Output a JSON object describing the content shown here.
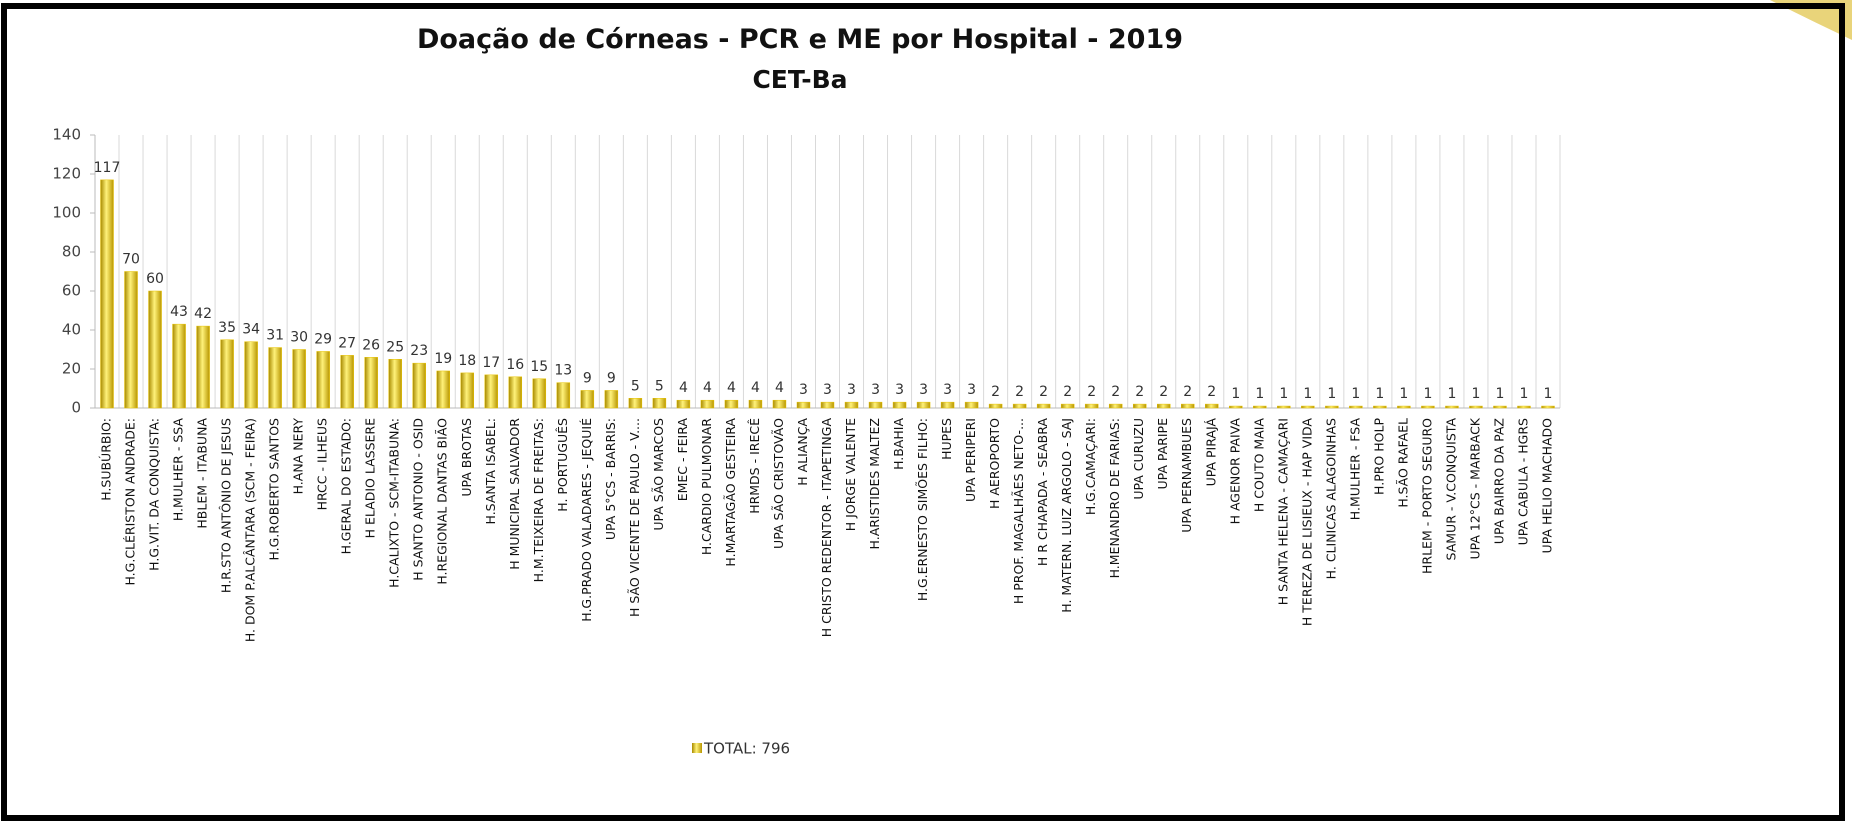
{
  "chart_data": {
    "type": "bar",
    "title": "Doação de Córneas - PCR e ME por Hospital - 2019",
    "subtitle": "CET-Ba",
    "categories": [
      "H.SUBÚRBIO:",
      "H.G.CLÉRISTON ANDRADE:",
      "H.G.VIT. DA CONQUISTA:",
      "H.MULHER - SSA",
      "HBLEM - ITABUNA",
      "H.R.STO ANTÔNIO DE JESUS",
      "H. DOM P.ALCÂNTARA (SCM - FEIRA)",
      "H.G.ROBERTO SANTOS",
      "H.ANA NERY",
      "HRCC - ILHEUS",
      "H.GERAL DO ESTADO:",
      "H ELADIO LASSERE",
      "H.CALIXTO - SCM-ITABUNA:",
      "H SANTO ANTONIO - OSID",
      "H.REGIONAL DANTAS BIÃO",
      "UPA BROTAS",
      "H.SANTA ISABEL:",
      "H MUNICIPAL SALVADOR",
      "H.M.TEIXEIRA DE FREITAS:",
      "H. PORTUGUÊS",
      "H.G.PRADO VALADARES - JEQUIÉ",
      "UPA 5°CS - BARRIS:",
      "H SÃO VICENTE DE PAULO - V....",
      "UPA SÃO MARCOS",
      "EMEC - FEIRA",
      "H.CARDIO PULMONAR",
      "H.MARTAGÃO GESTEIRA",
      "HRMDS - IRECÊ",
      "UPA SÃO CRISTOVÃO",
      "H ALIANÇA",
      "H CRISTO REDENTOR - ITAPETINGA",
      "H JORGE VALENTE",
      "H.ARISTIDES MALTEZ",
      "H.BAHIA",
      "H.G.ERNESTO SIMÕES FILHO:",
      "HUPES",
      "UPA PERIPERI",
      "H AEROPORTO",
      "H PROF. MAGALHÃES NETO-...",
      "H R CHAPADA - SEABRA",
      "H. MATERN. LUIZ ARGOLO - SAJ",
      "H.G.CAMAÇARI:",
      "H.MENANDRO DE FARIAS:",
      "UPA CURUZU",
      "UPA PARIPE",
      "UPA PERNAMBUES",
      "UPA PIRAJÁ",
      "H AGENOR PAIVA",
      "H COUTO MAIA",
      "H SANTA HELENA - CAMAÇARI",
      "H TEREZA DE LISIEUX - HAP VIDA",
      "H. CLINICAS ALAGOINHAS",
      "H.MULHER - FSA",
      "H.PRO HOLP",
      "H.SÃO RAFAEL",
      "HRLEM - PORTO SEGURO",
      "SAMUR - V.CONQUISTA",
      "UPA 12°CS - MARBACK",
      "UPA BAIRRO DA PAZ",
      "UPA CABULA - HGRS",
      "UPA HELIO MACHADO"
    ],
    "series": [
      {
        "name": "TOTAL: 796",
        "color": "#e8c300",
        "values": [
          117,
          70,
          60,
          43,
          42,
          35,
          34,
          31,
          30,
          29,
          27,
          26,
          25,
          23,
          19,
          18,
          17,
          16,
          15,
          13,
          9,
          9,
          5,
          5,
          4,
          4,
          4,
          4,
          4,
          3,
          3,
          3,
          3,
          3,
          3,
          3,
          3,
          2,
          2,
          2,
          2,
          2,
          2,
          2,
          2,
          2,
          2,
          1,
          1,
          1,
          1,
          1,
          1,
          1,
          1,
          1,
          1,
          1,
          1,
          1,
          1
        ]
      }
    ],
    "ylim": [
      0,
      140
    ],
    "yticks": [
      0,
      20,
      40,
      60,
      80,
      100,
      120,
      140
    ]
  }
}
